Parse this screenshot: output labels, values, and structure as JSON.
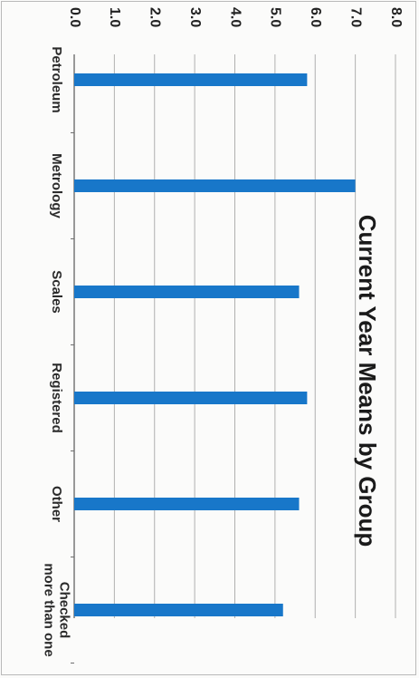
{
  "chart_data": {
    "type": "bar",
    "title": "Current Year Means by Group",
    "categories": [
      "Petroleum",
      "Metrology",
      "Scales",
      "Registered",
      "Other",
      "Checked more than one"
    ],
    "category_label_lines": [
      [
        "Petroleum"
      ],
      [
        "Metrology"
      ],
      [
        "Scales"
      ],
      [
        "Registered"
      ],
      [
        "Other"
      ],
      [
        "Checked",
        "more than one"
      ]
    ],
    "values": [
      5.8,
      7.0,
      5.6,
      5.8,
      5.6,
      5.2
    ],
    "ylim": [
      0,
      8
    ],
    "yticks": [
      "0.0",
      "1.0",
      "2.0",
      "3.0",
      "4.0",
      "5.0",
      "6.0",
      "7.0",
      "8.0"
    ],
    "xlabel": "",
    "ylabel": "",
    "grid": true,
    "orientation": "rotated 90 degrees clockwise",
    "bar_color": "#1877c9"
  }
}
